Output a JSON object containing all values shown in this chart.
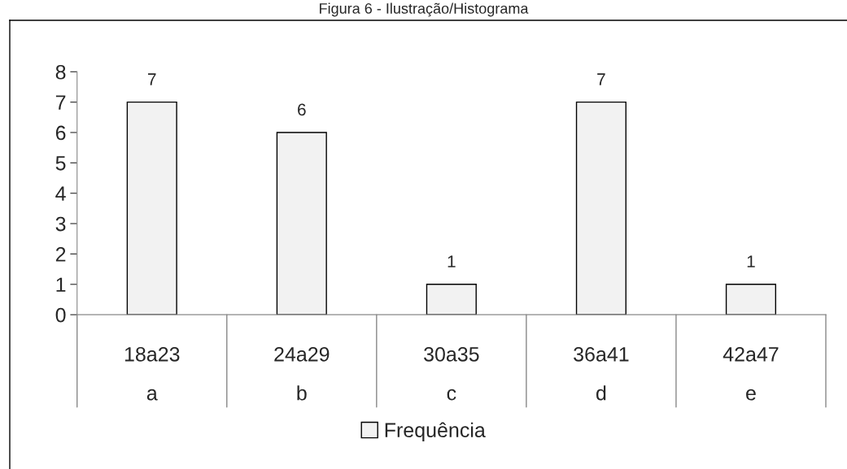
{
  "chart_data": {
    "type": "bar",
    "title": "Figura 6 - Ilustração/Histograma",
    "categories": [
      "18a23\na",
      "24a29\nb",
      "30a35\nc",
      "36a41\nd",
      "42a47\ne"
    ],
    "series": [
      {
        "name": "Frequência",
        "color": "#f2f2f2",
        "values": [
          7,
          6,
          1,
          7,
          1
        ]
      }
    ],
    "ylim": [
      0,
      8
    ],
    "yticks": [
      0,
      1,
      2,
      3,
      4,
      5,
      6,
      7,
      8
    ],
    "grid": false,
    "legend": "bottom",
    "data_labels": true
  }
}
